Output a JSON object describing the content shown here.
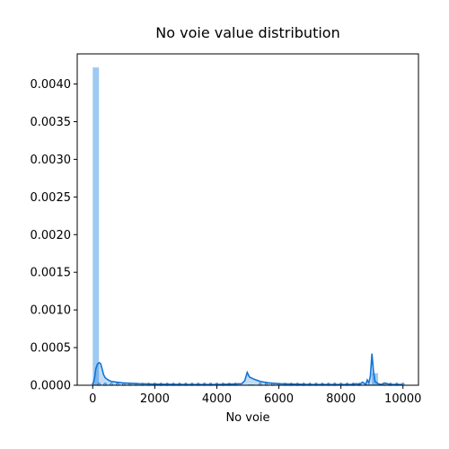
{
  "chart_data": {
    "type": "bar",
    "title": "No voie value distribution",
    "xlabel": "No voie",
    "ylabel": "",
    "xlim": [
      -500,
      10500
    ],
    "ylim": [
      0,
      0.0044
    ],
    "xticks": [
      0,
      2000,
      4000,
      6000,
      8000,
      10000
    ],
    "xtick_labels": [
      "0",
      "2000",
      "4000",
      "6000",
      "8000",
      "10000"
    ],
    "yticks": [
      0,
      0.0005,
      0.001,
      0.0015,
      0.002,
      0.0025,
      0.003,
      0.0035,
      0.004
    ],
    "ytick_labels": [
      "0.0000",
      "0.0005",
      "0.0010",
      "0.0015",
      "0.0020",
      "0.0025",
      "0.0030",
      "0.0035",
      "0.0040"
    ],
    "grid": false,
    "histogram": {
      "bins": [
        {
          "x0": 0,
          "x1": 200,
          "density": 0.00422
        },
        {
          "x0": 4800,
          "x1": 5000,
          "density": 5e-06
        },
        {
          "x0": 5000,
          "x1": 5200,
          "density": 1.2e-05
        },
        {
          "x0": 8800,
          "x1": 9000,
          "density": 1.2e-05
        },
        {
          "x0": 9000,
          "x1": 9200,
          "density": 0.00016
        },
        {
          "x0": 9200,
          "x1": 9400,
          "density": 8e-06
        }
      ],
      "color": "#9ec9f2"
    },
    "kde": {
      "color": "#1074d8",
      "x": [
        -20,
        20,
        60,
        100,
        150,
        200,
        250,
        300,
        350,
        400,
        500,
        600,
        800,
        1000,
        1500,
        2000,
        3000,
        4000,
        4800,
        4900,
        4980,
        5050,
        5100,
        5200,
        5400,
        5700,
        6000,
        7000,
        8000,
        8300,
        8500,
        8600,
        8700,
        8800,
        8850,
        8900,
        8950,
        9000,
        9050,
        9100,
        9200,
        9300,
        9400,
        9600,
        9800,
        10000
      ],
      "y": [
        1e-05,
        3e-05,
        0.0001,
        0.00022,
        0.00028,
        0.0003,
        0.00029,
        0.00022,
        0.00014,
        0.0001,
        7e-05,
        5e-05,
        4e-05,
        3e-05,
        2e-05,
        1.5e-05,
        1e-05,
        1e-05,
        2e-05,
        6e-05,
        0.00017,
        0.00011,
        0.0001,
        8e-05,
        5e-05,
        3e-05,
        2e-05,
        1e-05,
        1e-05,
        1e-05,
        2e-05,
        1e-05,
        4e-05,
        1e-05,
        7e-05,
        3e-05,
        0.00012,
        0.00042,
        0.00018,
        5e-05,
        2e-05,
        1e-05,
        3e-05,
        1e-05,
        1e-05,
        1e-05
      ]
    },
    "ticks_markers": {
      "x": [
        200,
        400,
        600,
        800,
        1000,
        1200,
        1400,
        1600,
        1800,
        2000,
        2200,
        2400,
        2600,
        2800,
        3000,
        3200,
        3400,
        3600,
        3800,
        4000,
        4200,
        4400,
        4600,
        5400,
        5600,
        5800,
        6000,
        6200,
        6400,
        6600,
        6800,
        7000,
        7200,
        7400,
        7600,
        7800,
        8000,
        8200,
        8400,
        8600,
        9400,
        9600,
        9800,
        10000
      ]
    }
  }
}
